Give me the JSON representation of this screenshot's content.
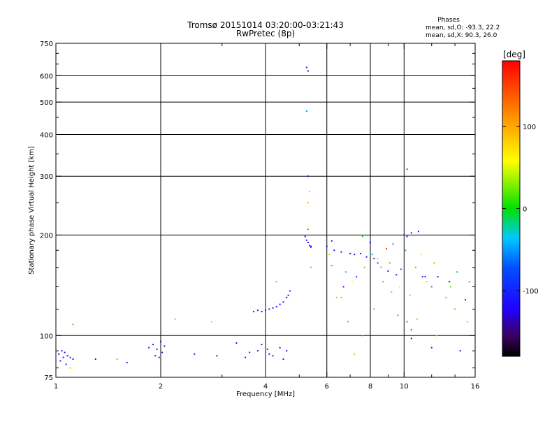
{
  "chart_data": {
    "type": "scatter",
    "title": "Tromsø 20151014 03:20:00-03:21:43",
    "subtitle": "RwPretec (8p)",
    "xlabel": "Frequency [MHz]",
    "ylabel": "Stationary phase Virtual Height [km]",
    "x_scale": "log",
    "y_scale": "log",
    "xlim": [
      1,
      16
    ],
    "ylim": [
      75,
      750
    ],
    "x_ticks": [
      1,
      2,
      4,
      6,
      8,
      10,
      16
    ],
    "x_tick_labels": [
      "1",
      "2",
      "4",
      "6",
      "8",
      "10",
      "16"
    ],
    "x_minor_ticks": [
      3,
      5,
      7,
      9,
      12,
      14
    ],
    "y_ticks": [
      75,
      100,
      200,
      300,
      400,
      500,
      600,
      750
    ],
    "y_tick_labels": [
      "75",
      "100",
      "200",
      "300",
      "400",
      "500",
      "600",
      "750"
    ],
    "y_minor_ticks": [
      80,
      90,
      120,
      140,
      160,
      180,
      250,
      350,
      450,
      550,
      650,
      700
    ],
    "grid": true,
    "stats": {
      "title": "Phases",
      "line_o": "mean, sd,O: -93.3, 22.2",
      "line_x": "mean, sd,X:  90.3, 26.0"
    },
    "colorbar": {
      "label": "[deg]",
      "range": [
        -180,
        180
      ],
      "ticks": [
        100,
        0,
        -100
      ],
      "tick_labels": [
        "100",
        "0",
        "-100"
      ]
    },
    "series": [
      {
        "points": [
          [
            1.02,
            88,
            -110
          ],
          [
            1.04,
            90,
            -105
          ],
          [
            1.05,
            86,
            -100
          ],
          [
            1.06,
            89,
            -115
          ],
          [
            1.08,
            87,
            -108
          ],
          [
            1.1,
            86,
            -95
          ],
          [
            1.12,
            85,
            -112
          ],
          [
            1.03,
            84,
            -102
          ],
          [
            1.07,
            82,
            -98
          ],
          [
            1.3,
            85,
            -110
          ],
          [
            1.6,
            83,
            -112
          ],
          [
            1.85,
            92,
            -105
          ],
          [
            1.9,
            94,
            -110
          ],
          [
            1.95,
            91,
            -108
          ],
          [
            2.0,
            96,
            -115
          ],
          [
            2.02,
            89,
            -100
          ],
          [
            2.05,
            93,
            -105
          ],
          [
            1.93,
            87,
            -112
          ],
          [
            1.98,
            86,
            -100
          ],
          [
            2.5,
            88,
            -105
          ],
          [
            2.9,
            87,
            -110
          ],
          [
            3.3,
            95,
            -108
          ],
          [
            3.5,
            86,
            -112
          ],
          [
            3.6,
            89,
            -100
          ],
          [
            3.8,
            90,
            -105
          ],
          [
            3.9,
            94,
            -110
          ],
          [
            4.05,
            91,
            -108
          ],
          [
            4.1,
            88,
            -112
          ],
          [
            4.2,
            87,
            -100
          ],
          [
            4.4,
            92,
            -105
          ],
          [
            4.6,
            90,
            -110
          ],
          [
            4.5,
            85,
            -108
          ],
          [
            3.7,
            118,
            -100
          ],
          [
            3.8,
            119,
            -105
          ],
          [
            3.9,
            118,
            -110
          ],
          [
            4.0,
            119,
            -108
          ],
          [
            4.1,
            120,
            -112
          ],
          [
            4.2,
            121,
            -100
          ],
          [
            4.3,
            122,
            -105
          ],
          [
            4.4,
            124,
            -110
          ],
          [
            4.5,
            126,
            -108
          ],
          [
            4.6,
            130,
            -112
          ],
          [
            4.7,
            136,
            -100
          ],
          [
            4.65,
            132,
            -105
          ],
          [
            5.2,
            198,
            -110
          ],
          [
            5.25,
            193,
            -108
          ],
          [
            5.3,
            190,
            -112
          ],
          [
            5.35,
            186,
            -100
          ],
          [
            5.4,
            184,
            -105
          ],
          [
            5.25,
            635,
            -110
          ],
          [
            5.3,
            620,
            -112
          ],
          [
            6.0,
            185,
            -108
          ],
          [
            6.3,
            180,
            -105
          ],
          [
            6.6,
            178,
            -110
          ],
          [
            7.0,
            176,
            -100
          ],
          [
            7.2,
            175,
            -112
          ],
          [
            7.5,
            176,
            -108
          ],
          [
            7.8,
            172,
            -105
          ],
          [
            8.2,
            170,
            -110
          ],
          [
            8.6,
            160,
            -100
          ],
          [
            9.0,
            156,
            -112
          ],
          [
            9.5,
            152,
            -108
          ],
          [
            10.0,
            200,
            -105
          ],
          [
            10.2,
            198,
            -110
          ],
          [
            10.5,
            203,
            -100
          ],
          [
            11.0,
            205,
            -112
          ],
          [
            11.5,
            150,
            -108
          ],
          [
            12.5,
            150,
            -105
          ],
          [
            13.5,
            145,
            -110
          ],
          [
            15.0,
            128,
            -100
          ],
          [
            8.4,
            165,
            -70
          ],
          [
            9.8,
            158,
            -60
          ],
          [
            7.3,
            150,
            -80
          ],
          [
            6.7,
            140,
            -120
          ],
          [
            10.5,
            98,
            -115
          ],
          [
            12.0,
            92,
            -110
          ],
          [
            14.5,
            90,
            -105
          ],
          [
            8.0,
            190,
            -125
          ],
          [
            6.2,
            192,
            -90
          ]
        ]
      },
      {
        "points": [
          [
            1.12,
            108,
            120
          ],
          [
            1.1,
            80,
            95
          ],
          [
            1.5,
            85,
            110
          ],
          [
            2.2,
            112,
            100
          ],
          [
            2.8,
            110,
            80
          ],
          [
            4.3,
            145,
            110
          ],
          [
            5.3,
            250,
            100
          ],
          [
            5.35,
            270,
            95
          ],
          [
            5.3,
            208,
            140
          ],
          [
            5.4,
            160,
            105
          ],
          [
            6.4,
            130,
            100
          ],
          [
            6.9,
            110,
            120
          ],
          [
            7.2,
            88,
            95
          ],
          [
            7.6,
            100,
            135
          ],
          [
            8.2,
            120,
            110
          ],
          [
            8.6,
            160,
            85
          ],
          [
            8.9,
            182,
            150
          ],
          [
            9.2,
            135,
            100
          ],
          [
            9.6,
            115,
            125
          ],
          [
            10.2,
            110,
            145
          ],
          [
            10.5,
            104,
            155
          ],
          [
            10.9,
            112,
            95
          ],
          [
            11.6,
            145,
            75
          ],
          [
            12.4,
            100,
            105
          ],
          [
            13.2,
            130,
            120
          ],
          [
            14.0,
            120,
            110
          ],
          [
            15.2,
            110,
            90
          ],
          [
            6.1,
            175,
            45
          ],
          [
            6.6,
            130,
            30
          ],
          [
            7.1,
            145,
            60
          ],
          [
            7.7,
            160,
            20
          ],
          [
            8.4,
            170,
            40
          ],
          [
            9.1,
            165,
            10
          ],
          [
            9.7,
            140,
            50
          ],
          [
            10.4,
            132,
            35
          ],
          [
            11.2,
            175,
            55
          ],
          [
            12.2,
            165,
            25
          ],
          [
            13.6,
            140,
            15
          ],
          [
            6.2,
            162,
            -20
          ],
          [
            6.8,
            155,
            -35
          ],
          [
            7.6,
            198,
            -5
          ],
          [
            8.1,
            175,
            -45
          ],
          [
            8.7,
            145,
            -30
          ],
          [
            9.3,
            188,
            -50
          ],
          [
            10.1,
            180,
            -40
          ],
          [
            10.8,
            160,
            -25
          ],
          [
            12.0,
            140,
            -55
          ],
          [
            14.2,
            155,
            -10
          ],
          [
            15.4,
            145,
            -45
          ],
          [
            5.25,
            470,
            -50
          ],
          [
            5.3,
            300,
            -130
          ],
          [
            5.4,
            185,
            -135
          ],
          [
            10.2,
            315,
            -60
          ],
          [
            11.3,
            150,
            -95
          ]
        ]
      }
    ]
  }
}
